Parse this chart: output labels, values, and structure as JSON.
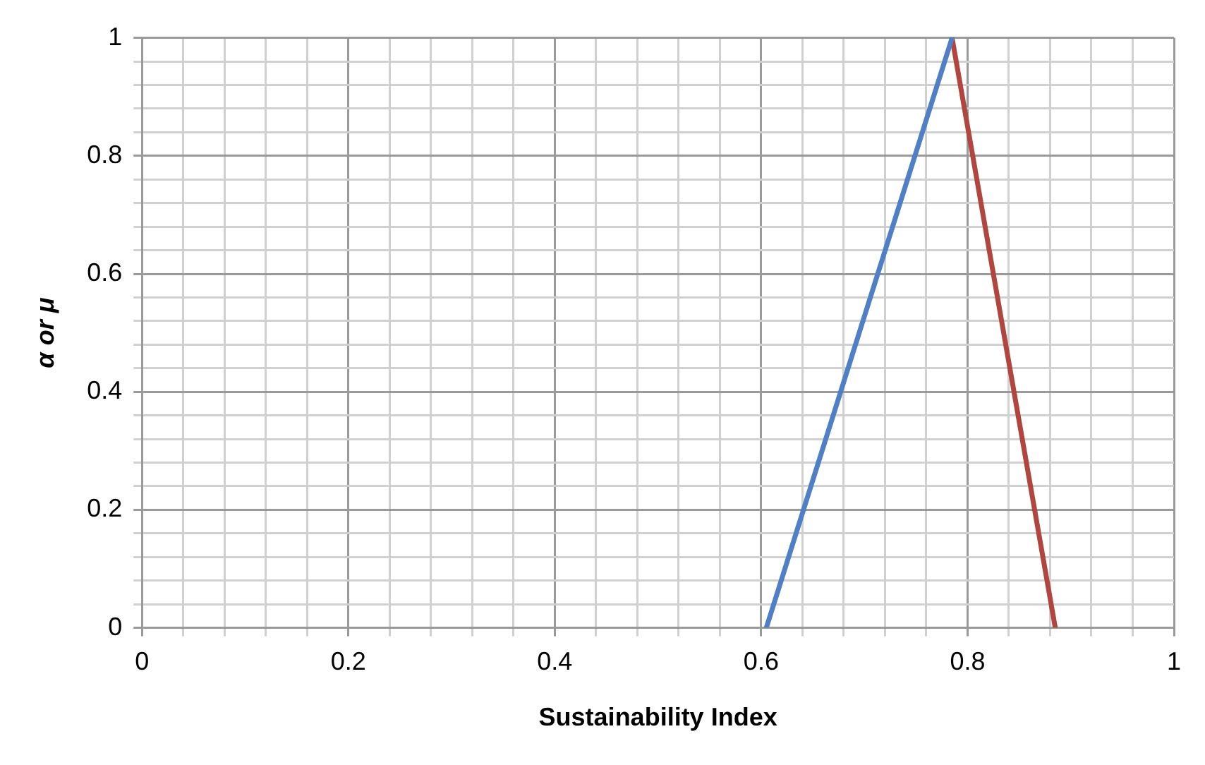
{
  "chart_data": {
    "type": "line",
    "xlabel": "Sustainability Index",
    "ylabel": "α or μ",
    "series": [
      {
        "color": "#4f7fc4",
        "x": [
          0.605,
          0.785
        ],
        "values": [
          0,
          1
        ]
      },
      {
        "color": "#b0463f",
        "x": [
          0.785,
          0.885
        ],
        "values": [
          1,
          0
        ]
      }
    ],
    "xlim": [
      0,
      1
    ],
    "ylim": [
      0,
      1
    ],
    "xticks": [
      0,
      {
        "value": 0.04,
        "label": null
      },
      {
        "value": 0.08,
        "label": null
      },
      {
        "value": 0.12,
        "label": null
      },
      {
        "value": 0.16,
        "label": null
      },
      0.2,
      {
        "value": 0.24,
        "label": null
      },
      {
        "value": 0.28,
        "label": null
      },
      {
        "value": 0.32,
        "label": null
      },
      {
        "value": 0.36,
        "label": null
      },
      0.4,
      {
        "value": 0.44,
        "label": null
      },
      {
        "value": 0.48,
        "label": null
      },
      {
        "value": 0.52,
        "label": null
      },
      {
        "value": 0.56,
        "label": null
      },
      0.6,
      {
        "value": 0.64,
        "label": null
      },
      {
        "value": 0.68,
        "label": null
      },
      {
        "value": 0.72,
        "label": null
      },
      {
        "value": 0.76,
        "label": null
      },
      0.8,
      {
        "value": 0.84,
        "label": null
      },
      {
        "value": 0.88,
        "label": null
      },
      {
        "value": 0.92,
        "label": null
      },
      {
        "value": 0.96,
        "label": null
      },
      1
    ],
    "yticks": [
      0,
      {
        "value": 0.04,
        "label": null
      },
      {
        "value": 0.08,
        "label": null
      },
      {
        "value": 0.12,
        "label": null
      },
      {
        "value": 0.16,
        "label": null
      },
      0.2,
      {
        "value": 0.24,
        "label": null
      },
      {
        "value": 0.28,
        "label": null
      },
      {
        "value": 0.32,
        "label": null
      },
      {
        "value": 0.36,
        "label": null
      },
      0.4,
      {
        "value": 0.44,
        "label": null
      },
      {
        "value": 0.48,
        "label": null
      },
      {
        "value": 0.52,
        "label": null
      },
      {
        "value": 0.56,
        "label": null
      },
      0.6,
      {
        "value": 0.64,
        "label": null
      },
      {
        "value": 0.68,
        "label": null
      },
      {
        "value": 0.72,
        "label": null
      },
      {
        "value": 0.76,
        "label": null
      },
      0.8,
      {
        "value": 0.84,
        "label": null
      },
      {
        "value": 0.88,
        "label": null
      },
      {
        "value": 0.92,
        "label": null
      },
      {
        "value": 0.96,
        "label": null
      },
      1
    ],
    "grid": true,
    "legend": false,
    "marker": "none",
    "line_style": "solid"
  }
}
